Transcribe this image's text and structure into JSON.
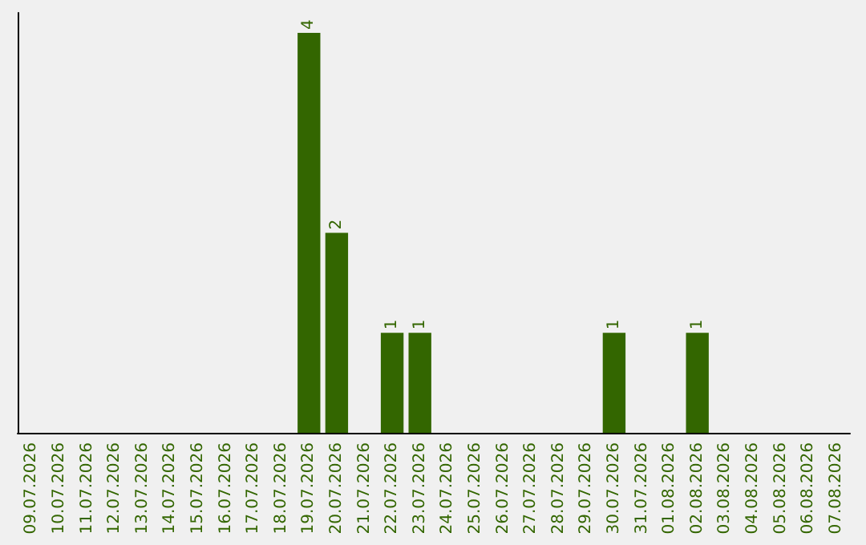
{
  "chart_data": {
    "type": "bar",
    "categories": [
      "09.07.2026",
      "10.07.2026",
      "11.07.2026",
      "12.07.2026",
      "13.07.2026",
      "14.07.2026",
      "15.07.2026",
      "16.07.2026",
      "17.07.2026",
      "18.07.2026",
      "19.07.2026",
      "20.07.2026",
      "21.07.2026",
      "22.07.2026",
      "23.07.2026",
      "24.07.2026",
      "25.07.2026",
      "26.07.2026",
      "27.07.2026",
      "28.07.2026",
      "29.07.2026",
      "30.07.2026",
      "31.07.2026",
      "01.08.2026",
      "02.08.2026",
      "03.08.2026",
      "04.08.2026",
      "05.08.2026",
      "06.08.2026",
      "07.08.2026"
    ],
    "values": [
      0,
      0,
      0,
      0,
      0,
      0,
      0,
      0,
      0,
      0,
      4,
      2,
      0,
      1,
      1,
      0,
      0,
      0,
      0,
      0,
      0,
      1,
      0,
      0,
      1,
      0,
      0,
      0,
      0,
      0
    ],
    "value_labels": [
      null,
      null,
      null,
      null,
      null,
      null,
      null,
      null,
      null,
      null,
      "4",
      "2",
      null,
      "1",
      "1",
      null,
      null,
      null,
      null,
      null,
      null,
      "1",
      null,
      null,
      "1",
      null,
      null,
      null,
      null,
      null
    ],
    "color": "#336600",
    "tick_labels": "x"
  }
}
